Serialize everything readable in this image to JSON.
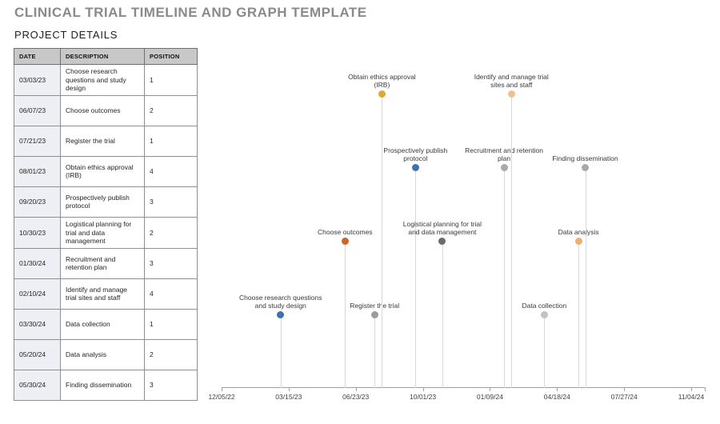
{
  "page": {
    "title": "CLINICAL TRIAL TIMELINE AND GRAPH TEMPLATE",
    "subtitle": "PROJECT DETAILS"
  },
  "table": {
    "columns": [
      "DATE",
      "DESCRIPTION",
      "POSITION"
    ]
  },
  "chart_data": {
    "type": "scatter",
    "subtype": "timeline-lollipop",
    "title": "",
    "xlabel": "",
    "ylabel": "",
    "grid": false,
    "legend": false,
    "ylim": [
      0,
      4.35
    ],
    "x_axis": {
      "tick_labels": [
        "12/05/22",
        "03/15/23",
        "06/23/23",
        "10/01/23",
        "01/09/24",
        "04/18/24",
        "07/27/24",
        "11/04/24"
      ],
      "start_date": "12/05/22",
      "end_date": "11/04/24",
      "interval_days": 100,
      "total_days": 700
    },
    "events": [
      {
        "date": "03/03/23",
        "label": "Choose research questions and study design",
        "label_lines": [
          "Choose research questions",
          "and study design"
        ],
        "position": 1,
        "day_offset": 88,
        "color": "#3e70b6"
      },
      {
        "date": "06/07/23",
        "label": "Choose outcomes",
        "label_lines": [
          "Choose outcomes"
        ],
        "position": 2,
        "day_offset": 184,
        "color": "#d06328"
      },
      {
        "date": "07/21/23",
        "label": "Register the trial",
        "label_lines": [
          "Register the trial"
        ],
        "position": 1,
        "day_offset": 228,
        "color": "#9c9c9c"
      },
      {
        "date": "08/01/23",
        "label": "Obtain ethics approval (IRB)",
        "label_lines": [
          "Obtain ethics approval",
          "(IRB)"
        ],
        "position": 4,
        "day_offset": 239,
        "color": "#e3a62f"
      },
      {
        "date": "09/20/23",
        "label": "Prospectively publish protocol",
        "label_lines": [
          "Prospectively publish",
          "protocol"
        ],
        "position": 3,
        "day_offset": 289,
        "color": "#3e70b6"
      },
      {
        "date": "10/30/23",
        "label": "Logistical planning for trial and data management",
        "label_lines": [
          "Logistical planning for trial",
          "and data management"
        ],
        "position": 2,
        "day_offset": 329,
        "color": "#6b6b6b"
      },
      {
        "date": "01/30/24",
        "label": "Recruitment and retention plan",
        "label_lines": [
          "Recruitment and retention",
          "plan"
        ],
        "position": 3,
        "day_offset": 421,
        "color": "#a9a9a9"
      },
      {
        "date": "02/10/24",
        "label": "Identify and manage trial sites and staff",
        "label_lines": [
          "Identify and manage trial",
          "sites and staff"
        ],
        "position": 4,
        "day_offset": 432,
        "color": "#f3c08d"
      },
      {
        "date": "03/30/24",
        "label": "Data collection",
        "label_lines": [
          "Data collection"
        ],
        "position": 1,
        "day_offset": 481,
        "color": "#c2c2c2"
      },
      {
        "date": "05/20/24",
        "label": "Data analysis",
        "label_lines": [
          "Data analysis"
        ],
        "position": 2,
        "day_offset": 532,
        "color": "#f1ad6d"
      },
      {
        "date": "05/30/24",
        "label": "Finding dissemination",
        "label_lines": [
          "Finding dissemination"
        ],
        "position": 3,
        "day_offset": 542,
        "color": "#a9a9a9"
      }
    ],
    "colors": {
      "stem": "#d8d8d8",
      "axis": "#a0a0a0",
      "label_text": "#3a3a3a",
      "title_text": "#8a8a8a"
    }
  }
}
